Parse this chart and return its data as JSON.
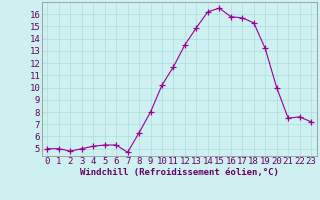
{
  "x": [
    0,
    1,
    2,
    3,
    4,
    5,
    6,
    7,
    8,
    9,
    10,
    11,
    12,
    13,
    14,
    15,
    16,
    17,
    18,
    19,
    20,
    21,
    22,
    23
  ],
  "y": [
    5.0,
    5.0,
    4.8,
    5.0,
    5.2,
    5.3,
    5.3,
    4.7,
    6.3,
    8.0,
    10.2,
    11.7,
    13.5,
    14.9,
    16.2,
    16.5,
    15.8,
    15.7,
    15.3,
    13.2,
    10.0,
    7.5,
    7.6,
    7.2
  ],
  "line_color": "#990099",
  "marker": "+",
  "marker_color": "#990099",
  "bg_color": "#cff0f0",
  "grid_color": "#aadddd",
  "xlabel": "Windchill (Refroidissement éolien,°C)",
  "xlabel_color": "#660066",
  "tick_color": "#660066",
  "ylim_min": 4.4,
  "ylim_max": 17.0,
  "xlim_min": -0.5,
  "xlim_max": 23.5,
  "yticks": [
    5,
    6,
    7,
    8,
    9,
    10,
    11,
    12,
    13,
    14,
    15,
    16
  ],
  "xticks": [
    0,
    1,
    2,
    3,
    4,
    5,
    6,
    7,
    8,
    9,
    10,
    11,
    12,
    13,
    14,
    15,
    16,
    17,
    18,
    19,
    20,
    21,
    22,
    23
  ],
  "font_size": 6.5
}
